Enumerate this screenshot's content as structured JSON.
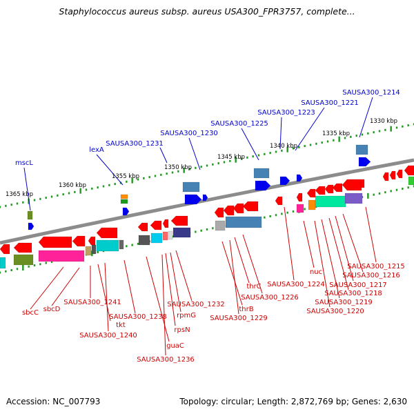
{
  "title": "Staphylococcus aureus subsp. aureus USA300_FPR3757, complete...",
  "footer": {
    "accession": "Accession: NC_007793",
    "summary": "Topology: circular; Length: 2,872,769 bp; Genes: 2,630"
  },
  "colors": {
    "backbone": "#8c8c8c",
    "tick": "#1f9a1f",
    "top_label": "#0000cc",
    "bottom_label": "#cc0000",
    "connector_top": "#0000cc",
    "connector_bottom": "#cc0000"
  },
  "scale_labels": [
    "1365 kbp",
    "1360 kbp",
    "1355 kbp",
    "1350 kbp",
    "1345 kbp",
    "1340 kbp",
    "1335 kbp",
    "1330 kbp"
  ],
  "top_genes": [
    "mscL",
    "lexA",
    "SAUSA300_1231",
    "SAUSA300_1230",
    "SAUSA300_1225",
    "SAUSA300_1223",
    "SAUSA300_1221",
    "SAUSA300_1214"
  ],
  "bottom_genes": [
    "sbcC",
    "sbcD",
    "SAUSA300_1241",
    "tkt",
    "SAUSA300_1240",
    "SAUSA300_1238",
    "guaC",
    "SAUSA300_1236",
    "rpsN",
    "rpmG",
    "SAUSA300_1232",
    "thrB",
    "SAUSA300_1229",
    "thrC",
    "SAUSA300_1226",
    "SAUSA300_1224",
    "nuc",
    "SAUSA300_1220",
    "SAUSA300_1219",
    "SAUSA300_1218",
    "SAUSA300_1217",
    "SAUSA300_1216",
    "SAUSA300_1215"
  ]
}
